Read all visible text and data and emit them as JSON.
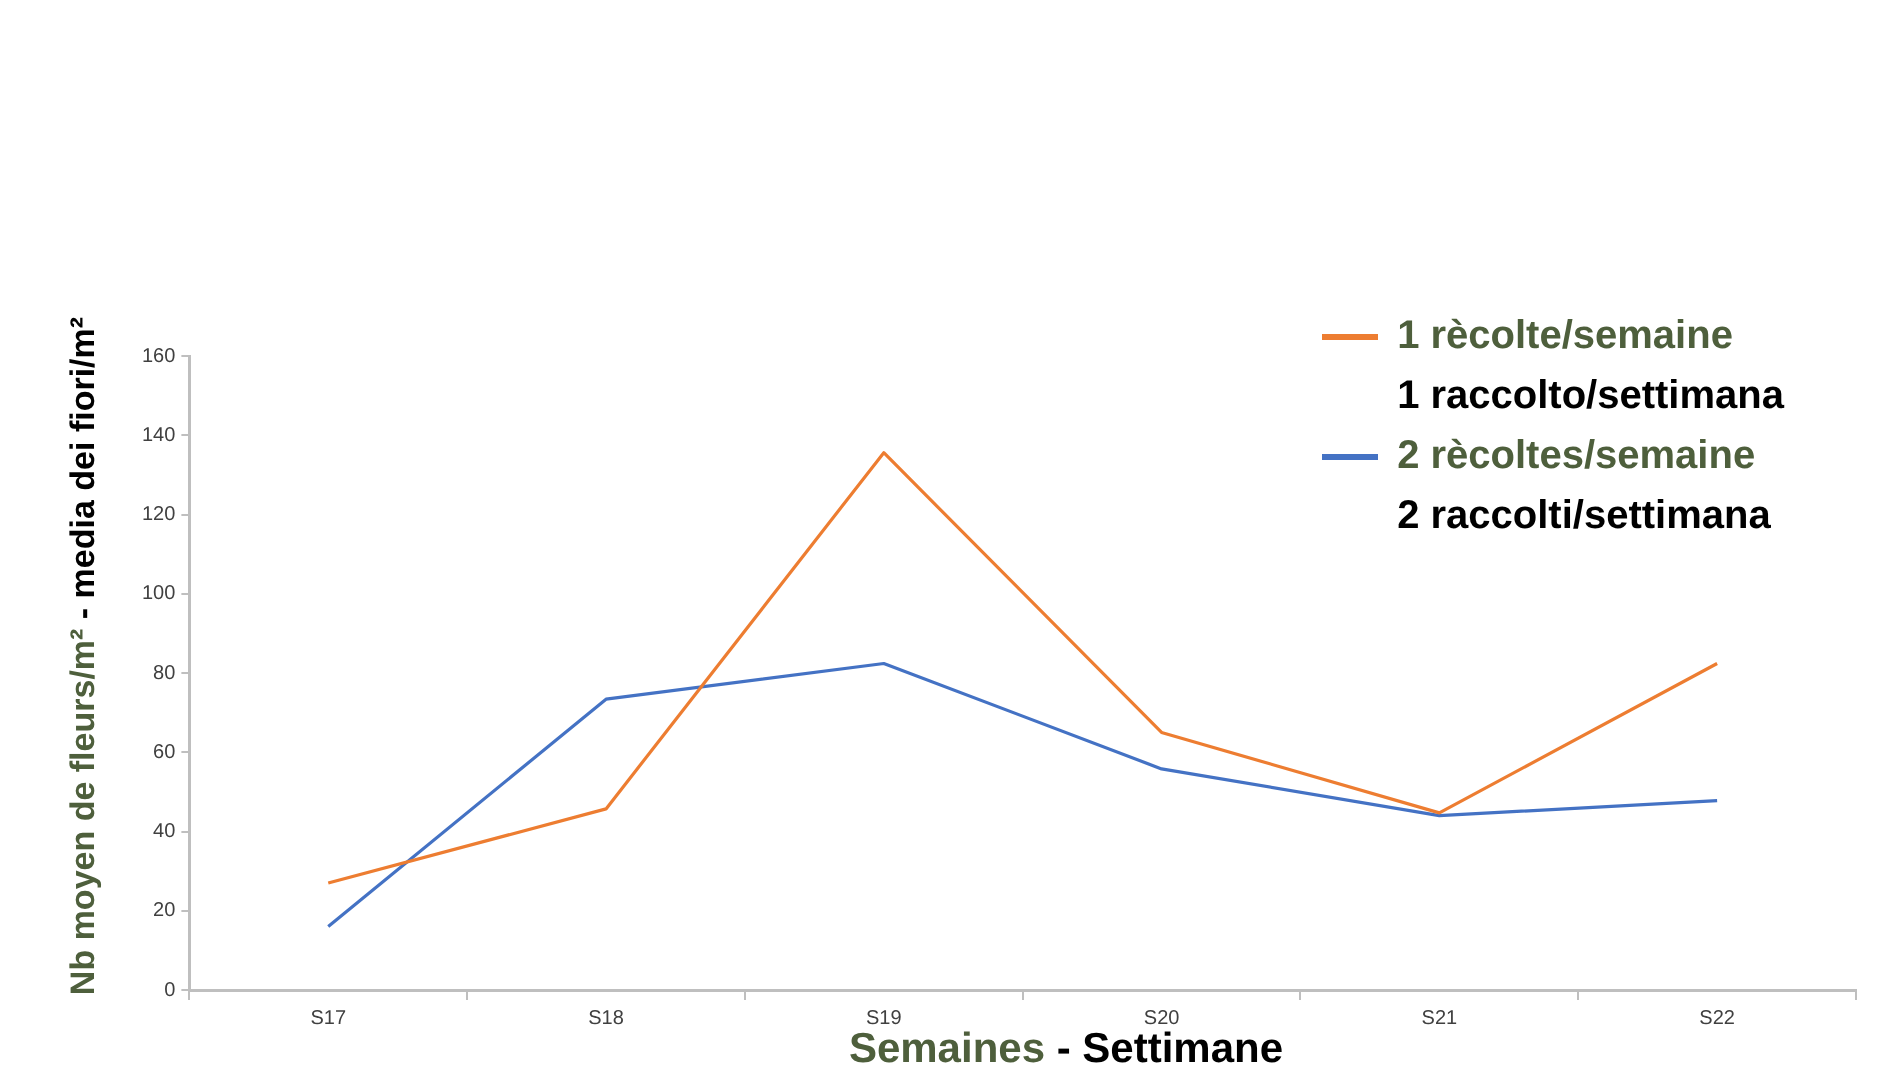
{
  "chart_data": {
    "type": "line",
    "xlabel": "Semaines - Settimane",
    "ylabel": "Nb moyen de fleurs/m² - media dei fiori/m²",
    "categories": [
      "S17",
      "S18",
      "S19",
      "S20",
      "S21",
      "S22"
    ],
    "series": [
      {
        "name": "1 rècolte/semaine\n1 raccolto/settimana",
        "color": "#ed7d31",
        "values": [
          27,
          45.7,
          135.6,
          65,
          44.7,
          82.4
        ]
      },
      {
        "name": "2 rècoltes/semaine\n2 raccolti/settimana",
        "color": "#4472c4",
        "values": [
          16,
          73.4,
          82.4,
          55.8,
          44,
          47.8
        ]
      }
    ],
    "ylim": [
      0,
      160
    ],
    "yticks": [
      0,
      20,
      40,
      60,
      80,
      100,
      120,
      140,
      160
    ],
    "grid": false,
    "legend": "top right",
    "marker": "none",
    "line_style": "solid"
  }
}
